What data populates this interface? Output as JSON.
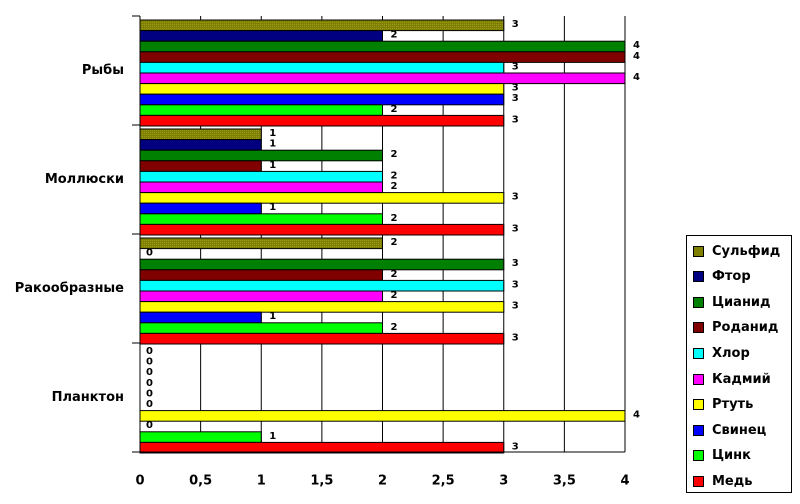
{
  "chart_data": {
    "type": "bar",
    "orientation": "horizontal",
    "categories": [
      "Рыбы",
      "Моллюски",
      "Ракообразные",
      "Планктон"
    ],
    "xlim": [
      0,
      4
    ],
    "xticks": [
      "0",
      "0,5",
      "1",
      "1,5",
      "2",
      "2,5",
      "3",
      "3,5",
      "4"
    ],
    "grid": true,
    "legend_position": "right",
    "series": [
      {
        "name": "Сульфид",
        "color": "#808000",
        "values": [
          3,
          1,
          2,
          0
        ]
      },
      {
        "name": "Фтор",
        "color": "#000080",
        "values": [
          2,
          1,
          0,
          0
        ]
      },
      {
        "name": "Цианид",
        "color": "#008000",
        "values": [
          4,
          2,
          3,
          0
        ]
      },
      {
        "name": "Роданид",
        "color": "#800000",
        "values": [
          4,
          1,
          2,
          0
        ]
      },
      {
        "name": "Хлор",
        "color": "#00FFFF",
        "values": [
          3,
          2,
          3,
          0
        ]
      },
      {
        "name": "Кадмий",
        "color": "#FF00FF",
        "values": [
          4,
          2,
          2,
          0
        ]
      },
      {
        "name": "Ртуть",
        "color": "#FFFF00",
        "values": [
          3,
          3,
          3,
          4
        ]
      },
      {
        "name": "Свинец",
        "color": "#0000FF",
        "values": [
          3,
          1,
          1,
          0
        ]
      },
      {
        "name": "Цинк",
        "color": "#00FF00",
        "values": [
          2,
          2,
          2,
          1
        ]
      },
      {
        "name": "Медь",
        "color": "#FF0000",
        "values": [
          3,
          3,
          3,
          3
        ]
      }
    ]
  }
}
